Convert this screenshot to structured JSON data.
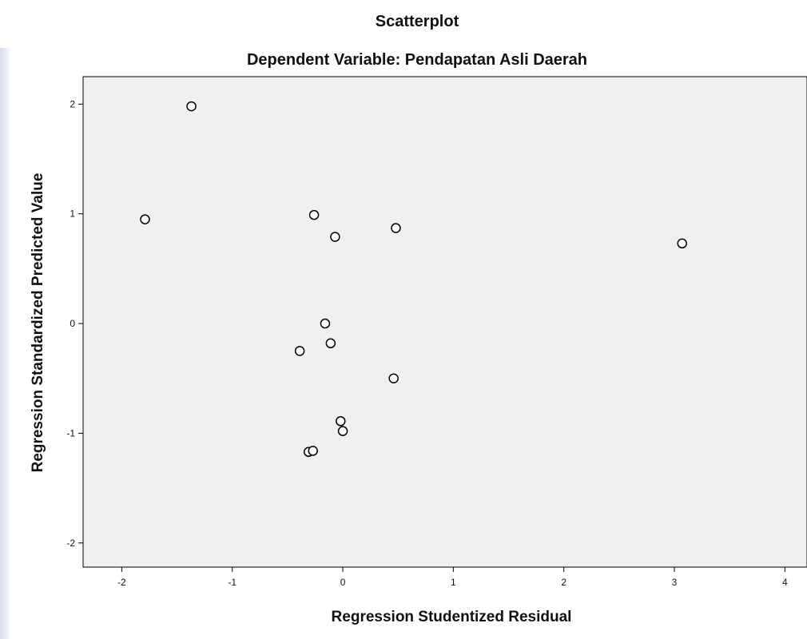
{
  "chart_data": {
    "type": "scatter",
    "title": "Scatterplot",
    "subtitle": "Dependent Variable: Pendapatan Asli Daerah",
    "xlabel": "Regression Studentized Residual",
    "ylabel": "Regression Standardized Predicted Value",
    "xlim": [
      -2.35,
      4.2
    ],
    "ylim": [
      -2.22,
      2.25
    ],
    "xticks": [
      -2,
      -1,
      0,
      1,
      2,
      3,
      4
    ],
    "yticks": [
      2,
      1,
      0,
      -1,
      -2
    ],
    "grid": false,
    "points": [
      {
        "x": -1.37,
        "y": 1.98
      },
      {
        "x": -1.79,
        "y": 0.95
      },
      {
        "x": -0.26,
        "y": 0.99
      },
      {
        "x": -0.07,
        "y": 0.79
      },
      {
        "x": 0.48,
        "y": 0.87
      },
      {
        "x": 3.07,
        "y": 0.73
      },
      {
        "x": -0.16,
        "y": 0.0
      },
      {
        "x": -0.39,
        "y": -0.25
      },
      {
        "x": -0.11,
        "y": -0.18
      },
      {
        "x": 0.46,
        "y": -0.5
      },
      {
        "x": -0.02,
        "y": -0.89
      },
      {
        "x": 0.0,
        "y": -0.98
      },
      {
        "x": -0.31,
        "y": -1.17
      },
      {
        "x": -0.27,
        "y": -1.16
      }
    ]
  },
  "colors": {
    "plot_background": "#f0f0f0",
    "marker_stroke": "#000000",
    "marker_fill": "#ffffff"
  }
}
